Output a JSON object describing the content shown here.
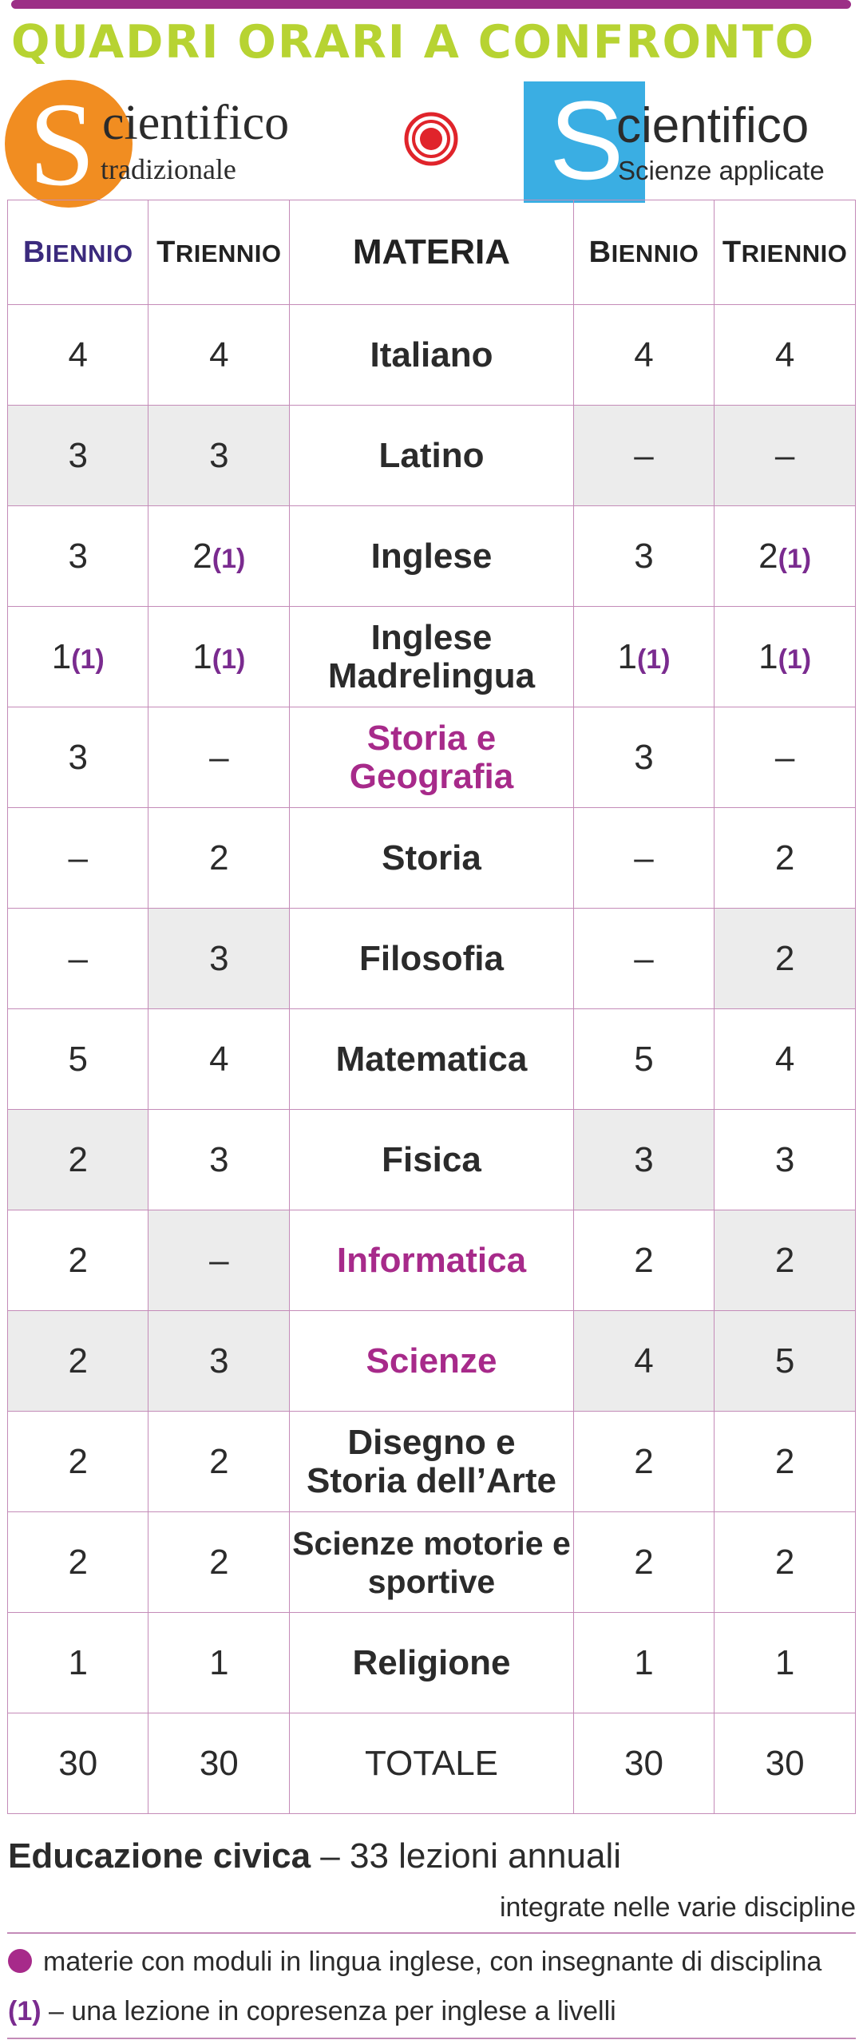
{
  "title": "QUADRI ORARI A CONFRONTO",
  "logo_left": {
    "letter": "S",
    "word1": "cientifico",
    "word2": "tradizionale"
  },
  "logo_right": {
    "letter": "S",
    "word1": "cientifico",
    "word2": "Scienze applicate"
  },
  "colors": {
    "accent": "#9c2f86",
    "title_green": "#b7d332",
    "orange": "#f18d21",
    "blue": "#3aaee3",
    "gray_cell": "#ececec"
  },
  "table": {
    "headers": {
      "biennio_cap": "B",
      "biennio_rest": "IENNIO",
      "triennio_cap": "T",
      "triennio_rest": "RIENNIO",
      "materia": "MATERIA"
    },
    "rows": [
      {
        "c1": "4",
        "c1s": "",
        "c2": "4",
        "c2s": "",
        "m": "Italiano",
        "m2": "",
        "c3": "4",
        "c3s": "",
        "c4": "4",
        "c4s": ""
      },
      {
        "c1": "3",
        "c1s": "",
        "c2": "3",
        "c2s": "",
        "m": "Latino",
        "m2": "",
        "c3": "–",
        "c3s": "",
        "c4": "–",
        "c4s": ""
      },
      {
        "c1": "3",
        "c1s": "",
        "c2": "2",
        "c2s": "(1)",
        "m": "Inglese",
        "m2": "",
        "c3": "3",
        "c3s": "",
        "c4": "2",
        "c4s": "(1)"
      },
      {
        "c1": "1",
        "c1s": "(1)",
        "c2": "1",
        "c2s": "(1)",
        "m": "Inglese",
        "m2": "Madrelingua",
        "c3": "1",
        "c3s": "(1)",
        "c4": "1",
        "c4s": "(1)"
      },
      {
        "c1": "3",
        "c1s": "",
        "c2": "–",
        "c2s": "",
        "m": "Storia e",
        "m2": "Geografia",
        "c3": "3",
        "c3s": "",
        "c4": "–",
        "c4s": ""
      },
      {
        "c1": "–",
        "c1s": "",
        "c2": "2",
        "c2s": "",
        "m": "Storia",
        "m2": "",
        "c3": "–",
        "c3s": "",
        "c4": "2",
        "c4s": ""
      },
      {
        "c1": "–",
        "c1s": "",
        "c2": "3",
        "c2s": "",
        "m": "Filosofia",
        "m2": "",
        "c3": "–",
        "c3s": "",
        "c4": "2",
        "c4s": ""
      },
      {
        "c1": "5",
        "c1s": "",
        "c2": "4",
        "c2s": "",
        "m": "Matematica",
        "m2": "",
        "c3": "5",
        "c3s": "",
        "c4": "4",
        "c4s": ""
      },
      {
        "c1": "2",
        "c1s": "",
        "c2": "3",
        "c2s": "",
        "m": "Fisica",
        "m2": "",
        "c3": "3",
        "c3s": "",
        "c4": "3",
        "c4s": ""
      },
      {
        "c1": "2",
        "c1s": "",
        "c2": "–",
        "c2s": "",
        "m": "Informatica",
        "m2": "",
        "c3": "2",
        "c3s": "",
        "c4": "2",
        "c4s": ""
      },
      {
        "c1": "2",
        "c1s": "",
        "c2": "3",
        "c2s": "",
        "m": "Scienze",
        "m2": "",
        "c3": "4",
        "c3s": "",
        "c4": "5",
        "c4s": ""
      },
      {
        "c1": "2",
        "c1s": "",
        "c2": "2",
        "c2s": "",
        "m": "Disegno e",
        "m2": "Storia dell’Arte",
        "c3": "2",
        "c3s": "",
        "c4": "2",
        "c4s": ""
      },
      {
        "c1": "2",
        "c1s": "",
        "c2": "2",
        "c2s": "",
        "m": "Scienze motorie e",
        "m2": "sportive",
        "c3": "2",
        "c3s": "",
        "c4": "2",
        "c4s": ""
      },
      {
        "c1": "1",
        "c1s": "",
        "c2": "1",
        "c2s": "",
        "m": "Religione",
        "m2": "",
        "c3": "1",
        "c3s": "",
        "c4": "1",
        "c4s": ""
      },
      {
        "c1": "30",
        "c1s": "",
        "c2": "30",
        "c2s": "",
        "m": "TOTALE",
        "m2": "",
        "c3": "30",
        "c3s": "",
        "c4": "30",
        "c4s": ""
      }
    ]
  },
  "footer": {
    "edu_bold": "Educazione civica",
    "edu_rest": " – 33 lezioni annuali",
    "edu_line2": "integrate nelle varie discipline",
    "note1": "materie con moduli in lingua inglese, con insegnante di disciplina",
    "note2_mark": "(1)",
    "note2_text": " – una lezione in copresenza per inglese a livelli"
  }
}
